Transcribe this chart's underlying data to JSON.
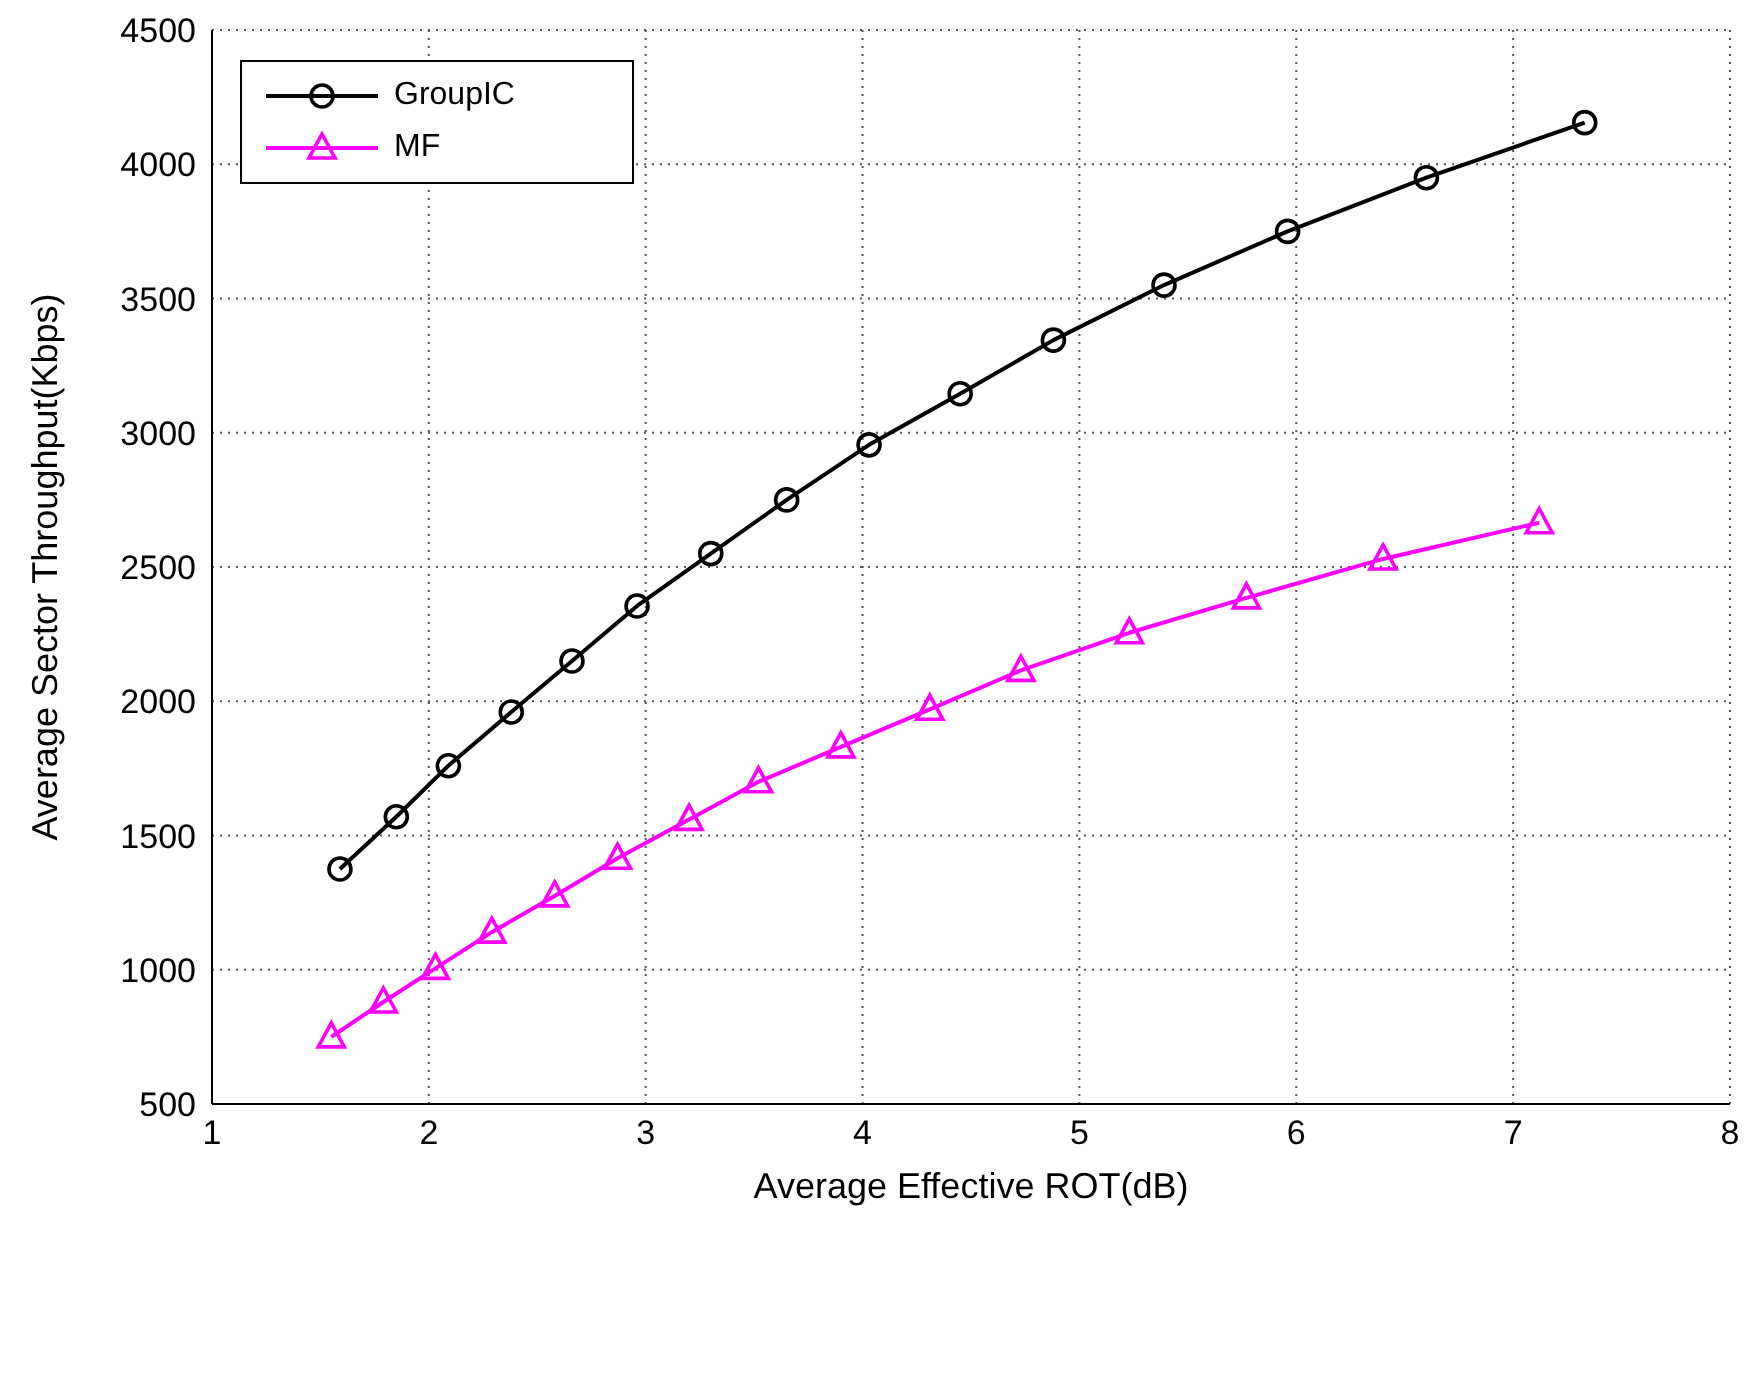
{
  "chart_data": {
    "type": "line",
    "xlabel": "Average Effective ROT(dB)",
    "ylabel": "Average Sector Throughput(Kbps)",
    "xlim": [
      1,
      8
    ],
    "xticks": [
      1,
      2,
      3,
      4,
      5,
      6,
      7,
      8
    ],
    "ylim": [
      500,
      4500
    ],
    "yticks": [
      500,
      1000,
      1500,
      2000,
      2500,
      3000,
      3500,
      4000,
      4500
    ],
    "grid": true,
    "legend": "top left",
    "line_style": "solid",
    "series": [
      {
        "name": "GroupIC",
        "color": "#000000",
        "marker": "circle",
        "x": [
          1.59,
          1.85,
          2.09,
          2.38,
          2.66,
          2.96,
          3.3,
          3.65,
          4.03,
          4.45,
          4.88,
          5.39,
          5.96,
          6.6,
          7.33
        ],
        "values": [
          1375,
          1570,
          1760,
          1960,
          2150,
          2355,
          2550,
          2750,
          2955,
          3145,
          3345,
          3550,
          3750,
          3950,
          4155
        ]
      },
      {
        "name": "MF",
        "color": "#ff00ff",
        "marker": "triangle",
        "x": [
          1.55,
          1.79,
          2.03,
          2.29,
          2.58,
          2.87,
          3.2,
          3.52,
          3.9,
          4.31,
          4.73,
          5.23,
          5.77,
          6.4,
          7.12
        ],
        "values": [
          750,
          880,
          1005,
          1140,
          1275,
          1415,
          1560,
          1700,
          1830,
          1970,
          2115,
          2255,
          2385,
          2530,
          2665
        ]
      }
    ]
  }
}
